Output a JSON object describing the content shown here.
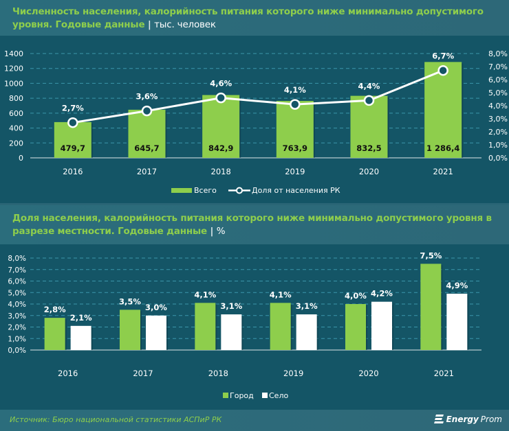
{
  "colors": {
    "background": "#145566",
    "title_green": "#8ece4c",
    "bar_green": "#8ece4c",
    "bar_white": "#ffffff",
    "text_white": "#ffffff",
    "grid": "#3b96ab",
    "axis": "#9bb6bd"
  },
  "header1": {
    "title": "Численность населения, калорийность питания которого ниже минимально допустимого уровня. Годовые данные",
    "separator": "|",
    "unit": "тыс. человек"
  },
  "header2": {
    "title": "Доля населения, калорийность питания которого ниже минимально допустимого уровня в разрезе местности. Годовые данные",
    "separator": "|",
    "unit": "%"
  },
  "footer": {
    "source": "Источник: Бюро национальной статистики АСПиР РК",
    "logo_bold": "Energy",
    "logo_light": "Prom"
  },
  "chart_data": [
    {
      "type": "bar",
      "combo": "bar+line",
      "title": "Численность населения, калорийность питания которого ниже минимально допустимого уровня. Годовые данные | тыс. человек",
      "categories": [
        "2016",
        "2017",
        "2018",
        "2019",
        "2020",
        "2021"
      ],
      "series": [
        {
          "name": "Всего",
          "type": "bar",
          "axis": "left",
          "values": [
            479.7,
            645.7,
            842.9,
            763.9,
            832.5,
            1286.4
          ],
          "labels": [
            "479,7",
            "645,7",
            "842,9",
            "763,9",
            "832,5",
            "1 286,4"
          ]
        },
        {
          "name": "Доля от населения РК",
          "type": "line",
          "axis": "right",
          "values": [
            2.7,
            3.6,
            4.6,
            4.1,
            4.4,
            6.7
          ],
          "labels": [
            "2,7%",
            "3,6%",
            "4,6%",
            "4,1%",
            "4,4%",
            "6,7%"
          ]
        }
      ],
      "y_left": {
        "min": 0,
        "max": 1400,
        "step": 200,
        "ticks": [
          "0",
          "200",
          "400",
          "600",
          "800",
          "1000",
          "1200",
          "1400"
        ]
      },
      "y_right": {
        "min": 0,
        "max": 8,
        "step": 1,
        "ticks": [
          "0,0%",
          "1,0%",
          "2,0%",
          "3,0%",
          "4,0%",
          "5,0%",
          "6,0%",
          "7,0%",
          "8,0%"
        ]
      },
      "grid": true,
      "legend": "bottom-center"
    },
    {
      "type": "bar",
      "title": "Доля населения, калорийность питания которого ниже минимально допустимого уровня в разрезе местности. Годовые данные | %",
      "categories": [
        "2016",
        "2017",
        "2018",
        "2019",
        "2020",
        "2021"
      ],
      "series": [
        {
          "name": "Город",
          "values": [
            2.8,
            3.5,
            4.1,
            4.1,
            4.0,
            7.5
          ],
          "labels": [
            "2,8%",
            "3,5%",
            "4,1%",
            "4,1%",
            "4,0%",
            "7,5%"
          ]
        },
        {
          "name": "Село",
          "values": [
            2.1,
            3.0,
            3.1,
            3.1,
            4.2,
            4.9
          ],
          "labels": [
            "2,1%",
            "3,0%",
            "3,1%",
            "3,1%",
            "4,2%",
            "4,9%"
          ]
        }
      ],
      "y_left": {
        "min": 0,
        "max": 8,
        "step": 1,
        "ticks": [
          "0,0%",
          "1,0%",
          "2,0%",
          "3,0%",
          "4,0%",
          "5,0%",
          "6,0%",
          "7,0%",
          "8,0%"
        ]
      },
      "grid": true,
      "legend": "bottom-center"
    }
  ]
}
